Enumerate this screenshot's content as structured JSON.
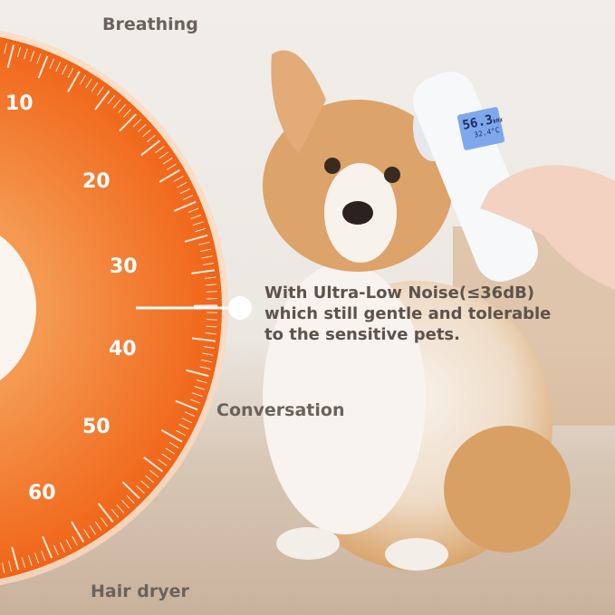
{
  "dial": {
    "accent_color": "#f26a1b",
    "ticks": [
      "10",
      "20",
      "30",
      "40",
      "50",
      "60"
    ],
    "top_label": "Breathing",
    "middle_label": "Conversation",
    "bottom_label": "Hair dryer",
    "pointer_value": 36
  },
  "claim": {
    "line1": "With Ultra-Low Noise(≤36dB)",
    "line2": "which still gentle and tolerable",
    "line3": "to the sensitive pets."
  },
  "device": {
    "lcd_main": "56.3",
    "lcd_unit": "kHz",
    "lcd_temp": "32.4°C",
    "lcd_color": "#7fa8ec"
  }
}
